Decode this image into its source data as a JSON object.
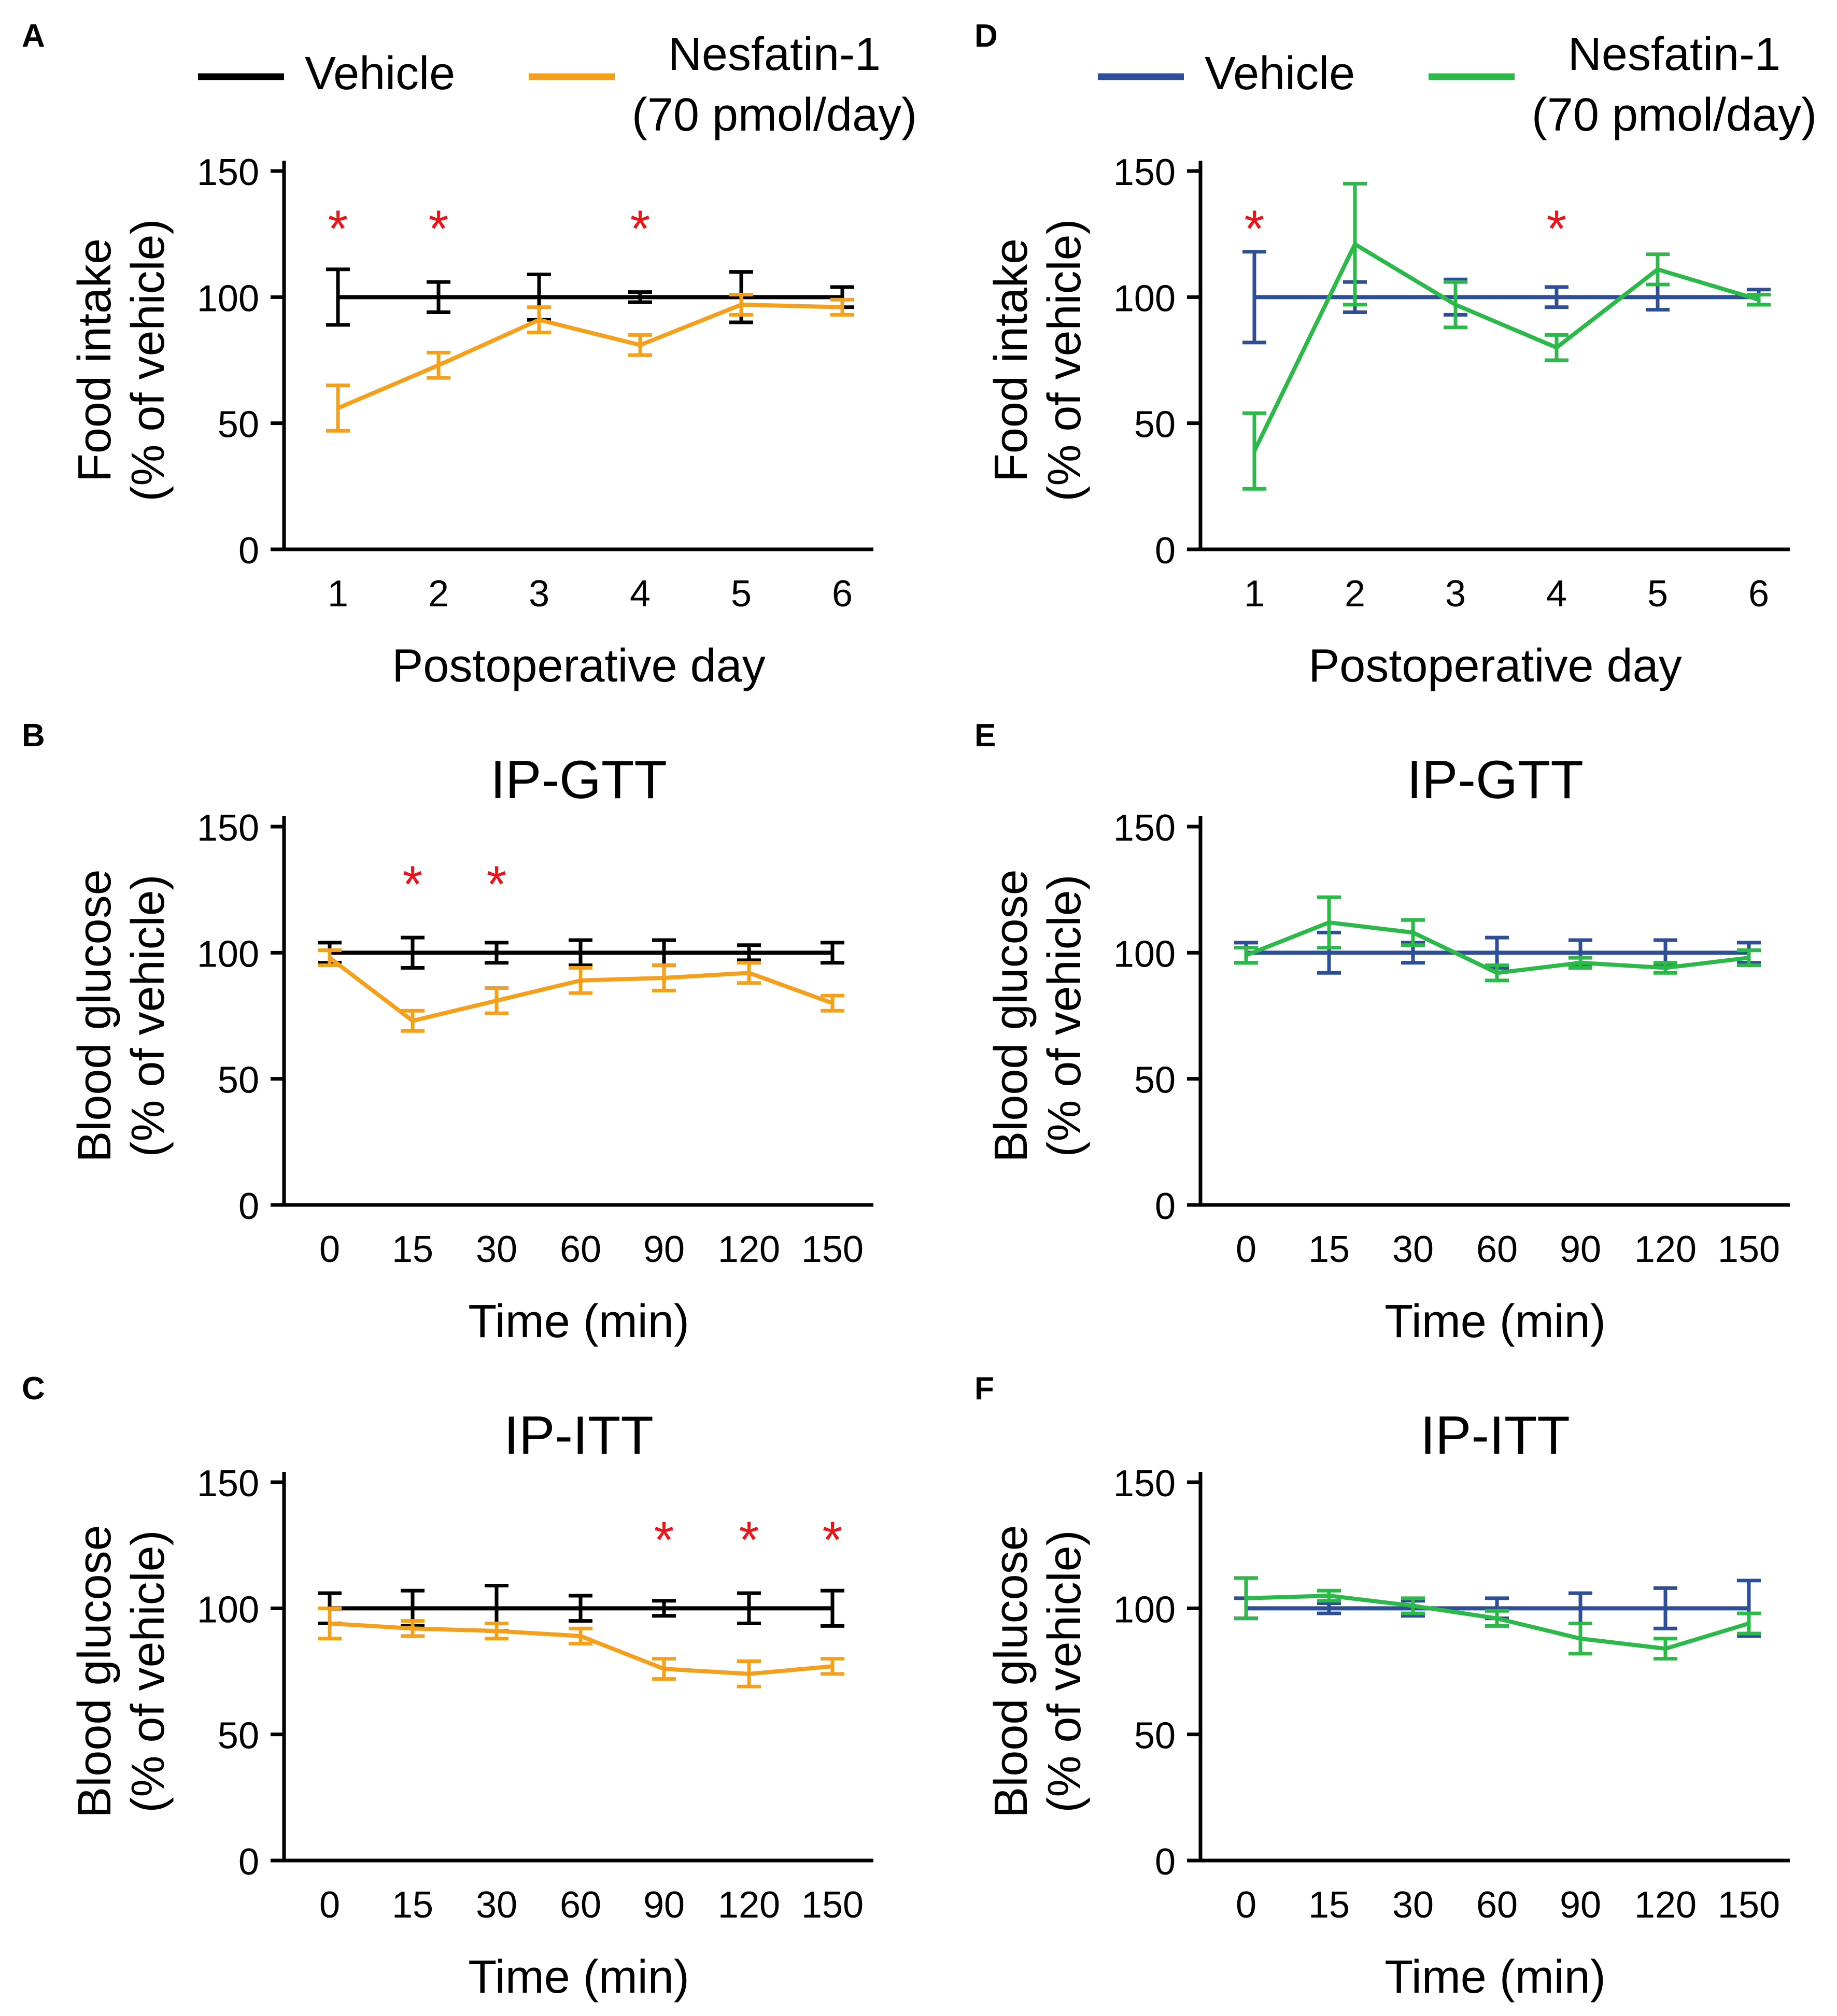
{
  "figure": {
    "colors": {
      "axis": "#000000",
      "vehicle_left": "#000000",
      "nesfatin_left": "#f5a01c",
      "vehicle_right": "#2e4f96",
      "nesfatin_right": "#2db84a",
      "significance": "#e8151b"
    },
    "legends": [
      {
        "panel_group": "left",
        "items": [
          {
            "label": "Vehicle",
            "color_key": "vehicle_left"
          },
          {
            "label": "Nesfatin-1",
            "sublabel": "(70 pmol/day)",
            "color_key": "nesfatin_left"
          }
        ]
      },
      {
        "panel_group": "right",
        "items": [
          {
            "label": "Vehicle",
            "color_key": "vehicle_right"
          },
          {
            "label": "Nesfatin-1",
            "sublabel": "(70 pmol/day)",
            "color_key": "nesfatin_right"
          }
        ]
      }
    ]
  },
  "chart_data": [
    {
      "panel": "A",
      "type": "line",
      "title": "",
      "xlabel": "Postoperative day",
      "ylabel": [
        "Food intake",
        "(% of vehicle)"
      ],
      "categories": [
        "1",
        "2",
        "3",
        "4",
        "5",
        "6"
      ],
      "ylim": [
        0,
        150
      ],
      "yticks": [
        0,
        50,
        100,
        150
      ],
      "grid": false,
      "series": [
        {
          "name": "Vehicle",
          "color_key": "vehicle_left",
          "values": [
            100,
            100,
            100,
            100,
            100,
            100
          ],
          "error": [
            11,
            6,
            9,
            2,
            10,
            4
          ]
        },
        {
          "name": "Nesfatin-1 (70 pmol/day)",
          "color_key": "nesfatin_left",
          "values": [
            56,
            73,
            91,
            81,
            97,
            96
          ],
          "error": [
            9,
            5,
            5,
            4,
            4,
            3
          ]
        }
      ],
      "significance": [
        {
          "category": "1",
          "label": "*"
        },
        {
          "category": "2",
          "label": "*"
        },
        {
          "category": "4",
          "label": "*"
        }
      ]
    },
    {
      "panel": "B",
      "type": "line",
      "title": "IP-GTT",
      "xlabel": "Time (min)",
      "ylabel": [
        "Blood glucose",
        "(% of vehicle)"
      ],
      "categories": [
        "0",
        "15",
        "30",
        "60",
        "90",
        "120",
        "150"
      ],
      "ylim": [
        0,
        150
      ],
      "yticks": [
        0,
        50,
        100,
        150
      ],
      "grid": false,
      "series": [
        {
          "name": "Vehicle",
          "color_key": "vehicle_left",
          "values": [
            100,
            100,
            100,
            100,
            100,
            100,
            100
          ],
          "error": [
            4,
            6,
            4,
            5,
            5,
            3,
            4
          ]
        },
        {
          "name": "Nesfatin-1 (70 pmol/day)",
          "color_key": "nesfatin_left",
          "values": [
            98,
            73,
            81,
            89,
            90,
            92,
            80
          ],
          "error": [
            3,
            4,
            5,
            5,
            5,
            4,
            3
          ]
        }
      ],
      "significance": [
        {
          "category": "15",
          "label": "*"
        },
        {
          "category": "30",
          "label": "*"
        }
      ]
    },
    {
      "panel": "C",
      "type": "line",
      "title": "IP-ITT",
      "xlabel": "Time (min)",
      "ylabel": [
        "Blood glucose",
        "(% of vehicle)"
      ],
      "categories": [
        "0",
        "15",
        "30",
        "60",
        "90",
        "120",
        "150"
      ],
      "ylim": [
        0,
        150
      ],
      "yticks": [
        0,
        50,
        100,
        150
      ],
      "grid": false,
      "series": [
        {
          "name": "Vehicle",
          "color_key": "vehicle_left",
          "values": [
            100,
            100,
            100,
            100,
            100,
            100,
            100
          ],
          "error": [
            6,
            7,
            9,
            5,
            3,
            6,
            7
          ]
        },
        {
          "name": "Nesfatin-1 (70 pmol/day)",
          "color_key": "nesfatin_left",
          "values": [
            94,
            92,
            91,
            89,
            76,
            74,
            77
          ],
          "error": [
            6,
            3,
            3,
            3,
            4,
            5,
            3
          ]
        }
      ],
      "significance": [
        {
          "category": "90",
          "label": "*"
        },
        {
          "category": "120",
          "label": "*"
        },
        {
          "category": "150",
          "label": "*"
        }
      ]
    },
    {
      "panel": "D",
      "type": "line",
      "title": "",
      "xlabel": "Postoperative day",
      "ylabel": [
        "Food intake",
        "(% of vehicle)"
      ],
      "categories": [
        "1",
        "2",
        "3",
        "4",
        "5",
        "6"
      ],
      "ylim": [
        0,
        150
      ],
      "yticks": [
        0,
        50,
        100,
        150
      ],
      "grid": false,
      "series": [
        {
          "name": "Vehicle",
          "color_key": "vehicle_right",
          "values": [
            100,
            100,
            100,
            100,
            100,
            100
          ],
          "error": [
            18,
            6,
            7,
            4,
            5,
            3
          ]
        },
        {
          "name": "Nesfatin-1 (70 pmol/day)",
          "color_key": "nesfatin_right",
          "values": [
            39,
            121,
            97,
            80,
            111,
            99
          ],
          "error": [
            15,
            24,
            9,
            5,
            6,
            2
          ]
        }
      ],
      "significance": [
        {
          "category": "1",
          "label": "*"
        },
        {
          "category": "4",
          "label": "*"
        }
      ]
    },
    {
      "panel": "E",
      "type": "line",
      "title": "IP-GTT",
      "xlabel": "Time (min)",
      "ylabel": [
        "Blood glucose",
        "(% of vehicle)"
      ],
      "categories": [
        "0",
        "15",
        "30",
        "60",
        "90",
        "120",
        "150"
      ],
      "ylim": [
        0,
        150
      ],
      "yticks": [
        0,
        50,
        100,
        150
      ],
      "grid": false,
      "series": [
        {
          "name": "Vehicle",
          "color_key": "vehicle_right",
          "values": [
            100,
            100,
            100,
            100,
            100,
            100,
            100
          ],
          "error": [
            4,
            8,
            4,
            6,
            5,
            5,
            4
          ]
        },
        {
          "name": "Nesfatin-1 (70 pmol/day)",
          "color_key": "nesfatin_right",
          "values": [
            99,
            112,
            108,
            92,
            96,
            94,
            98
          ],
          "error": [
            3,
            10,
            5,
            3,
            2,
            2,
            3
          ]
        }
      ],
      "significance": []
    },
    {
      "panel": "F",
      "type": "line",
      "title": "IP-ITT",
      "xlabel": "Time (min)",
      "ylabel": [
        "Blood glucose",
        "(% of vehicle)"
      ],
      "categories": [
        "0",
        "15",
        "30",
        "60",
        "90",
        "120",
        "150"
      ],
      "ylim": [
        0,
        150
      ],
      "yticks": [
        0,
        50,
        100,
        150
      ],
      "grid": false,
      "series": [
        {
          "name": "Vehicle",
          "color_key": "vehicle_right",
          "values": [
            100,
            100,
            100,
            100,
            100,
            100,
            100
          ],
          "error": [
            4,
            2,
            3,
            4,
            6,
            8,
            11
          ]
        },
        {
          "name": "Nesfatin-1 (70 pmol/day)",
          "color_key": "nesfatin_right",
          "values": [
            104,
            105,
            101,
            96,
            88,
            84,
            94
          ],
          "error": [
            8,
            2,
            3,
            3,
            6,
            4,
            4
          ]
        }
      ],
      "significance": []
    }
  ]
}
